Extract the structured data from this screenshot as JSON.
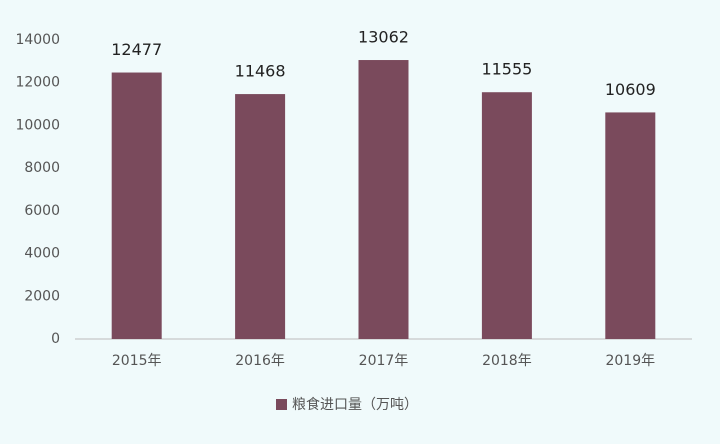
{
  "chart_data": {
    "type": "bar",
    "categories": [
      "2015年",
      "2016年",
      "2017年",
      "2018年",
      "2019年"
    ],
    "series": [
      {
        "name": "粮食进口量（万吨）",
        "color": "#7a4a5c",
        "values": [
          12477,
          11468,
          13062,
          11555,
          10609
        ]
      }
    ],
    "ylim": [
      0,
      14000
    ],
    "yticks": [
      0,
      2000,
      4000,
      6000,
      8000,
      10000,
      12000,
      14000
    ],
    "grid": false,
    "legend": "bottom"
  }
}
